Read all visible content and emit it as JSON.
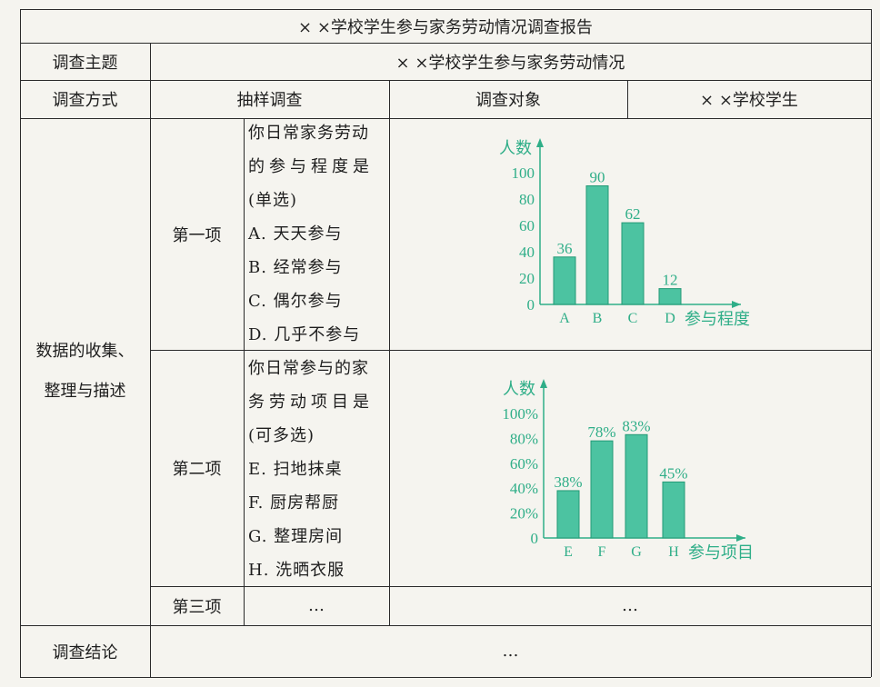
{
  "title": "× ×学校学生参与家务劳动情况调查报告",
  "rows": {
    "topic_label": "调查主题",
    "topic_value": "× ×学校学生参与家务劳动情况",
    "method_label": "调查方式",
    "method_value": "抽样调查",
    "target_label": "调查对象",
    "target_value": "× ×学校学生",
    "data_label_1": "数据的收集、",
    "data_label_2": "整理与描述",
    "conclusion_label": "调查结论",
    "conclusion_value": "…"
  },
  "items": [
    {
      "label": "第一项",
      "lines": [
        "你日常家务劳动",
        "的参与程度是",
        "(单选)",
        "A.  天天参与",
        "B.  经常参与",
        "C.  偶尔参与",
        "D.  几乎不参与"
      ]
    },
    {
      "label": "第二项",
      "lines": [
        "你日常参与的家",
        "务劳动项目是",
        "(可多选)",
        "E.  扫地抹桌",
        "F.  厨房帮厨",
        "G.  整理房间",
        "H.  洗晒衣服"
      ]
    },
    {
      "label": "第三项",
      "question": "…",
      "chart": "…"
    }
  ],
  "colors": {
    "chart": "#2fae88",
    "bar_fill": "#4cc3a1",
    "bar_stroke": "#239a76"
  },
  "chart_data": [
    {
      "type": "bar",
      "ylabel": "人数",
      "xlabel": "参与程度",
      "categories": [
        "A",
        "B",
        "C",
        "D"
      ],
      "values": [
        36,
        90,
        62,
        12
      ],
      "labels": [
        "36",
        "90",
        "62",
        "12"
      ],
      "yticks": [
        "0",
        "20",
        "40",
        "60",
        "80",
        "100"
      ],
      "ylim": [
        0,
        100
      ]
    },
    {
      "type": "bar",
      "ylabel": "人数",
      "xlabel": "参与项目",
      "categories": [
        "E",
        "F",
        "G",
        "H"
      ],
      "values": [
        38,
        78,
        83,
        45
      ],
      "labels": [
        "38%",
        "78%",
        "83%",
        "45%"
      ],
      "yticks": [
        "0",
        "20%",
        "40%",
        "60%",
        "80%",
        "100%"
      ],
      "ylim": [
        0,
        100
      ]
    }
  ]
}
